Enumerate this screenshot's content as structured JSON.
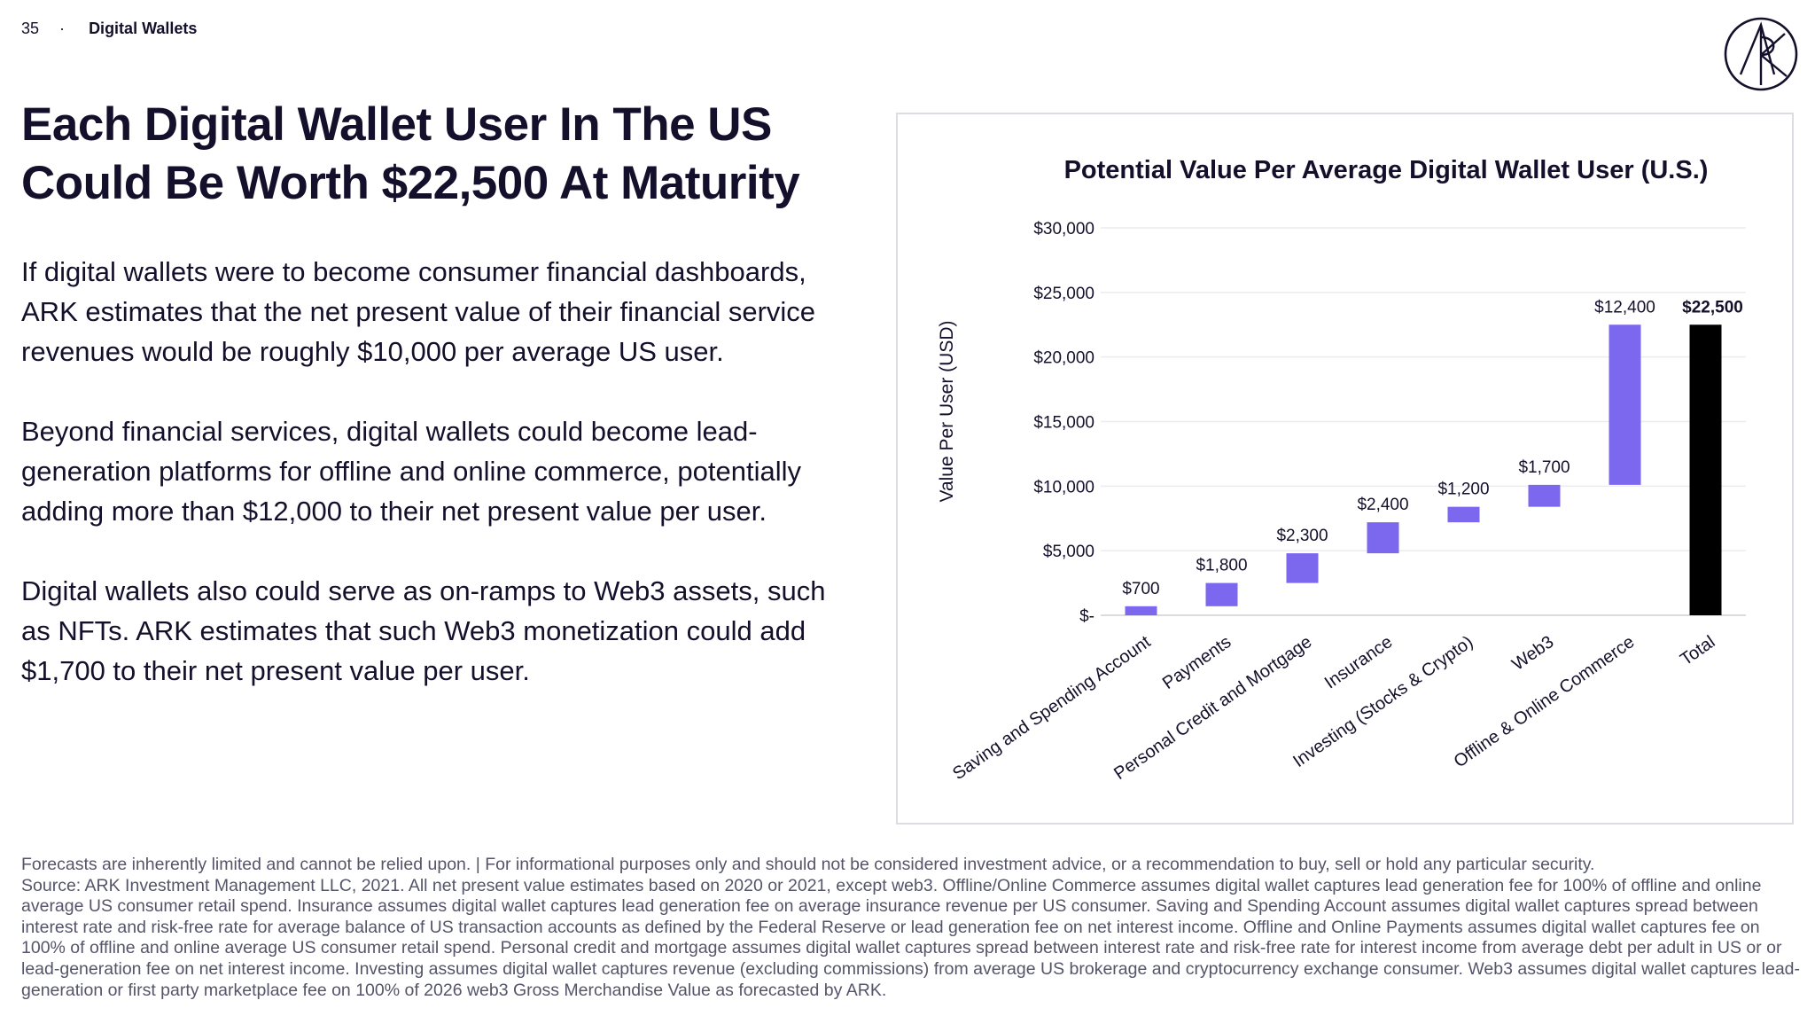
{
  "header": {
    "page_number": "35",
    "separator": "·",
    "section": "Digital Wallets"
  },
  "logo": {
    "icon": "ark-logo-icon"
  },
  "headline": {
    "line1": "Each Digital Wallet User In The US",
    "line2": "Could Be Worth $22,500 At Maturity"
  },
  "body": {
    "p1": "If digital wallets were to become consumer financial dashboards, ARK estimates that the net present value of their financial service revenues would be roughly $10,000 per average US user.",
    "p2": "Beyond financial services, digital wallets could become lead-generation platforms for offline and online commerce, potentially adding more than $12,000 to their net present value per user.",
    "p3": "Digital wallets also could serve as on-ramps to Web3 assets, such as NFTs. ARK estimates that such Web3 monetization could add $1,700 to their net present value per user."
  },
  "chart_data": {
    "type": "bar",
    "subtype": "waterfall",
    "title": "Potential Value Per Average Digital Wallet User (U.S.)",
    "ylabel": "Value Per User (USD)",
    "xlabel": "",
    "ylim": [
      0,
      30000
    ],
    "yticks": [
      0,
      5000,
      10000,
      15000,
      20000,
      25000,
      30000
    ],
    "ytick_labels": [
      "$-",
      "$5,000",
      "$10,000",
      "$15,000",
      "$20,000",
      "$25,000",
      "$30,000"
    ],
    "grid": true,
    "categories": [
      "Saving and Spending Account",
      "Payments",
      "Personal Credit and Mortgage",
      "Insurance",
      "Investing (Stocks & Crypto)",
      "Web3",
      "Offline & Online Commerce",
      "Total"
    ],
    "values": [
      700,
      1800,
      2300,
      2400,
      1200,
      1700,
      12400,
      22500
    ],
    "data_labels": [
      "$700",
      "$1,800",
      "$2,300",
      "$2,400",
      "$1,200",
      "$1,700",
      "$12,400",
      "$22,500"
    ],
    "total_index": 7,
    "colors": {
      "increment": "#7b68ee",
      "total": "#000000",
      "grid": "#ececf0"
    }
  },
  "footer": {
    "disclaimer": "Forecasts are inherently limited and cannot be relied upon. | For informational purposes only and should not be considered investment advice, or a recommendation to buy, sell or hold any particular security.",
    "source": "Source: ARK Investment Management LLC, 2021. All net present value estimates based on 2020 or 2021, except web3. Offline/Online Commerce assumes digital wallet captures lead generation fee for 100% of offline and online average US consumer retail spend. Insurance assumes digital wallet captures lead generation fee on average insurance revenue per US consumer. Saving and Spending Account assumes digital wallet captures spread between interest rate and risk-free rate for average balance of US transaction accounts as defined by the Federal Reserve or lead generation fee on net interest income. Offline and Online Payments assumes digital wallet captures fee on 100% of offline and online average US consumer retail spend. Personal credit and mortgage assumes digital wallet captures spread between interest rate and risk-free rate for interest income from average debt per adult in US or or lead-generation fee on net interest income. Investing assumes digital wallet captures revenue (excluding commissions) from average US brokerage and cryptocurrency exchange consumer. Web3 assumes digital wallet captures lead-generation or first party marketplace fee on 100% of 2026 web3 Gross Merchandise Value as forecasted by ARK."
  }
}
